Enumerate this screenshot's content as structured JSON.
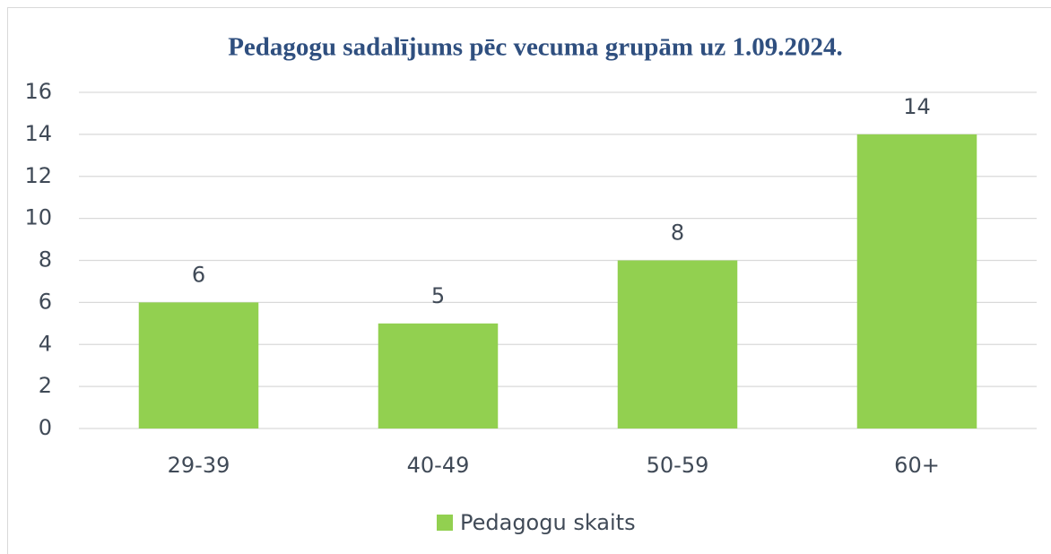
{
  "chart_data": {
    "type": "bar",
    "title": "Pedagogu sadalījums pēc vecuma grupām uz 1.09.2024.",
    "categories": [
      "29-39",
      "40-49",
      "50-59",
      "60+"
    ],
    "series": [
      {
        "name": "Pedagogu skaits",
        "color": "#92d050",
        "values": [
          6,
          5,
          8,
          14
        ]
      }
    ],
    "ylim": [
      0,
      16
    ],
    "yticks": [
      0,
      2,
      4,
      6,
      8,
      10,
      12,
      14,
      16
    ],
    "grid": true,
    "legend": "bottom",
    "data_labels": true
  }
}
